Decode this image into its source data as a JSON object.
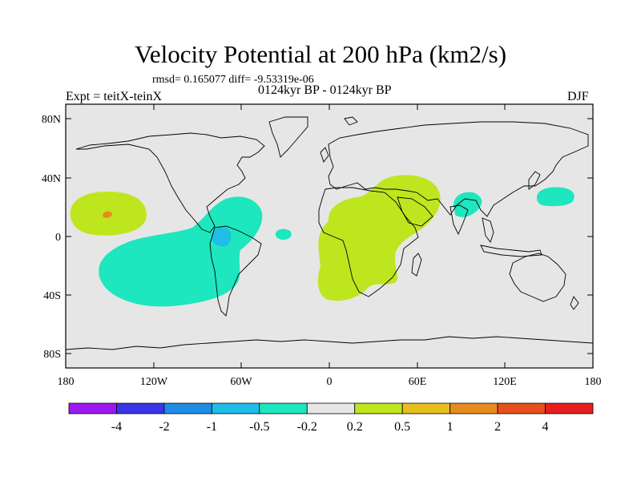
{
  "title": "Velocity Potential at 200 hPa (km2/s)",
  "subtitle": "rmsd= 0.165077 diff= -9.53319e-06",
  "left_label": "Expt = teitX-teinX",
  "center_label": "0124kyr BP - 0124kyr BP",
  "right_label": "DJF",
  "lat_labels": [
    "80N",
    "40N",
    "0",
    "40S",
    "80S"
  ],
  "lon_labels": [
    "180",
    "120W",
    "60W",
    "0",
    "60E",
    "120E",
    "180"
  ],
  "colorbar": {
    "labels": [
      "-4",
      "-2",
      "-1",
      "-0.5",
      "-0.2",
      "0.2",
      "0.5",
      "1",
      "2",
      "4"
    ],
    "colors": [
      "#9a19f0",
      "#3c34e6",
      "#1e8ce6",
      "#1ebee6",
      "#1ee6be",
      "#e6e6e6",
      "#bee61e",
      "#e6be1e",
      "#e68c1e",
      "#e6501e",
      "#e61e1e"
    ]
  },
  "colors": {
    "background": "#e6e6e6",
    "positive_0_2": "#bee61e",
    "negative_0_2": "#1ee6be",
    "negative_0_5": "#1ebee6",
    "positive_1": "#e68c1e"
  }
}
